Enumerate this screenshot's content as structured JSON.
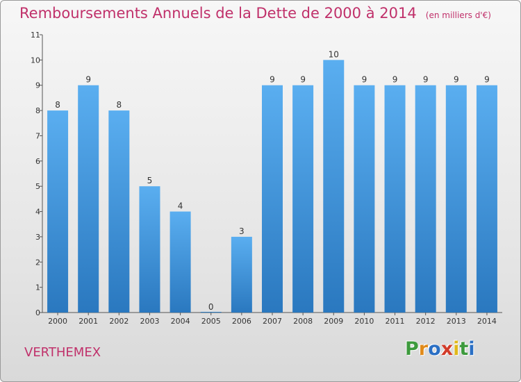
{
  "chart_data": {
    "type": "bar",
    "title": "Remboursements Annuels de la Dette de 2000 à 2014",
    "subtitle": "(en milliers d'€)",
    "categories": [
      "2000",
      "2001",
      "2002",
      "2003",
      "2004",
      "2005",
      "2006",
      "2007",
      "2008",
      "2009",
      "2010",
      "2011",
      "2012",
      "2013",
      "2014"
    ],
    "values": [
      8,
      9,
      8,
      5,
      4,
      0,
      3,
      9,
      9,
      10,
      9,
      9,
      9,
      9,
      9
    ],
    "ylim": [
      0,
      11
    ],
    "yticks": [
      0,
      1,
      2,
      3,
      4,
      5,
      6,
      7,
      8,
      9,
      10,
      11
    ],
    "xlabel": "",
    "ylabel": "",
    "grid": false,
    "bar_color": "#4a9fe0",
    "bar_color_dark": "#2f7fc4"
  },
  "commune": "VERTHEMEX",
  "logo": {
    "letters": [
      "P",
      "r",
      "o",
      "x",
      "i",
      "t",
      "i"
    ],
    "colors": [
      "#3d9a3d",
      "#e08a1a",
      "#2a6fc4",
      "#d23c2a",
      "#e0b81a",
      "#3d9a3d",
      "#2a6fc4"
    ]
  },
  "colors": {
    "title": "#c0306a",
    "axis": "#333333"
  }
}
